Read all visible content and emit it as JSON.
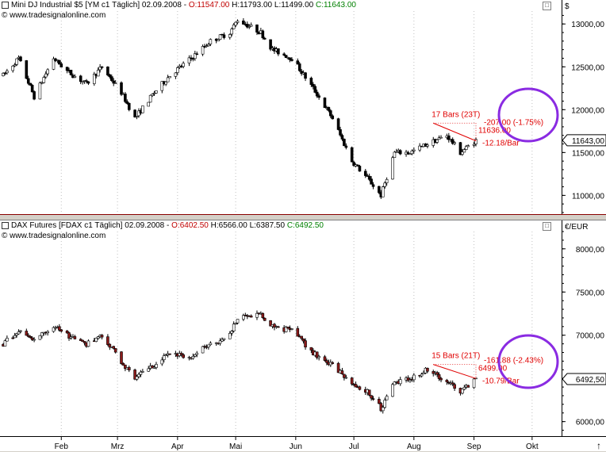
{
  "top_panel": {
    "header": {
      "instrument": "Mini DJ Industrial $5 [YM c1  Täglich] 02.09.2008 - ",
      "open": "O:11547.00",
      "high_low": " H:11793.00 L:11499.00 ",
      "close": "C:11643.00"
    },
    "copyright": "© www.tradesignalonline.com",
    "currency": "$",
    "last_price_label": "11643,00",
    "annotation_bars": "17 Bars (23T)",
    "annotation_change": "-207.00 (-1.75%)",
    "annotation_price": "11636.00",
    "annotation_rate": "-12.18/Bar",
    "highlight_color": "#8a2be2"
  },
  "bottom_panel": {
    "header": {
      "instrument": "DAX Futures [FDAX c1  Täglich] 02.09.2008 - ",
      "open": "O:6402.50",
      "high_low": " H:6566.00 L:6387.50 ",
      "close": "C:6492.50"
    },
    "copyright": "© www.tradesignalonline.com",
    "currency": "€/EUR",
    "last_price_label": "6492,50",
    "annotation_bars": "15 Bars (21T)",
    "annotation_change": "-161.88 (-2.43%)",
    "annotation_price": "6499.00",
    "annotation_rate": "-10.79/Bar",
    "highlight_color": "#8a2be2"
  },
  "colors": {
    "up_candle": "#ffffff",
    "down_candle": "#000000",
    "down_candle_dax": "#8b1a1a",
    "annotation": "#e00000"
  },
  "chart_data": [
    {
      "type": "candlestick",
      "title": "Mini DJ Industrial $5 [YM c1  Täglich] 02.09.2008",
      "ylabel": "$",
      "ylim": [
        10800,
        13150
      ],
      "y_ticks": [
        11000,
        11500,
        12000,
        12500,
        13000
      ],
      "y_tick_labels": [
        "11000,00",
        "11500,00",
        "12000,00",
        "12500,00",
        "13000,00"
      ],
      "x_tick_labels": [
        "Feb",
        "Mrz",
        "Apr",
        "Mai",
        "Jun",
        "Jul",
        "Aug",
        "Sep",
        "Okt"
      ],
      "path": [
        [
          "2008-01-02",
          12400
        ],
        [
          "2008-01-10",
          12600
        ],
        [
          "2008-01-18",
          12150
        ],
        [
          "2008-01-28",
          12600
        ],
        [
          "2008-02-04",
          12450
        ],
        [
          "2008-02-14",
          12300
        ],
        [
          "2008-02-22",
          12500
        ],
        [
          "2008-03-03",
          12200
        ],
        [
          "2008-03-10",
          11900
        ],
        [
          "2008-03-20",
          12200
        ],
        [
          "2008-03-28",
          12400
        ],
        [
          "2008-04-08",
          12600
        ],
        [
          "2008-04-18",
          12800
        ],
        [
          "2008-04-28",
          12900
        ],
        [
          "2008-05-02",
          13050
        ],
        [
          "2008-05-14",
          12900
        ],
        [
          "2008-05-20",
          12700
        ],
        [
          "2008-05-30",
          12600
        ],
        [
          "2008-06-10",
          12250
        ],
        [
          "2008-06-20",
          11900
        ],
        [
          "2008-06-30",
          11400
        ],
        [
          "2008-07-08",
          11200
        ],
        [
          "2008-07-15",
          11000
        ],
        [
          "2008-07-22",
          11500
        ],
        [
          "2008-07-30",
          11500
        ],
        [
          "2008-08-08",
          11600
        ],
        [
          "2008-08-18",
          11700
        ],
        [
          "2008-08-25",
          11500
        ],
        [
          "2008-09-02",
          11643
        ]
      ],
      "last": 11643,
      "trendline": {
        "from": [
          "2008-08-11",
          11843
        ],
        "to": [
          "2008-09-02",
          11636
        ]
      }
    },
    {
      "type": "candlestick",
      "title": "DAX Futures [FDAX c1  Täglich] 02.09.2008",
      "ylabel": "€/EUR",
      "ylim": [
        5850,
        8200
      ],
      "y_ticks": [
        6000,
        6500,
        7000,
        7500,
        8000
      ],
      "y_tick_labels": [
        "6000,00",
        "6500,00",
        "7000,00",
        "7500,00",
        "8000,00"
      ],
      "x_tick_labels": [
        "Feb",
        "Mrz",
        "Apr",
        "Mai",
        "Jun",
        "Jul",
        "Aug",
        "Sep",
        "Okt"
      ],
      "path": [
        [
          "2008-01-02",
          6900
        ],
        [
          "2008-01-10",
          7050
        ],
        [
          "2008-01-18",
          6950
        ],
        [
          "2008-01-28",
          7100
        ],
        [
          "2008-02-04",
          7000
        ],
        [
          "2008-02-14",
          6900
        ],
        [
          "2008-02-22",
          7000
        ],
        [
          "2008-03-03",
          6700
        ],
        [
          "2008-03-10",
          6500
        ],
        [
          "2008-03-20",
          6650
        ],
        [
          "2008-03-28",
          6800
        ],
        [
          "2008-04-08",
          6750
        ],
        [
          "2008-04-18",
          6900
        ],
        [
          "2008-04-28",
          7000
        ],
        [
          "2008-05-02",
          7200
        ],
        [
          "2008-05-14",
          7250
        ],
        [
          "2008-05-20",
          7100
        ],
        [
          "2008-05-30",
          7050
        ],
        [
          "2008-06-10",
          6800
        ],
        [
          "2008-06-20",
          6650
        ],
        [
          "2008-06-30",
          6450
        ],
        [
          "2008-07-08",
          6350
        ],
        [
          "2008-07-15",
          6150
        ],
        [
          "2008-07-22",
          6450
        ],
        [
          "2008-07-30",
          6500
        ],
        [
          "2008-08-08",
          6600
        ],
        [
          "2008-08-18",
          6450
        ],
        [
          "2008-08-25",
          6350
        ],
        [
          "2008-09-02",
          6492.5
        ]
      ],
      "last": 6492.5,
      "trendline": {
        "from": [
          "2008-08-11",
          6661
        ],
        "to": [
          "2008-09-02",
          6499
        ]
      }
    }
  ]
}
